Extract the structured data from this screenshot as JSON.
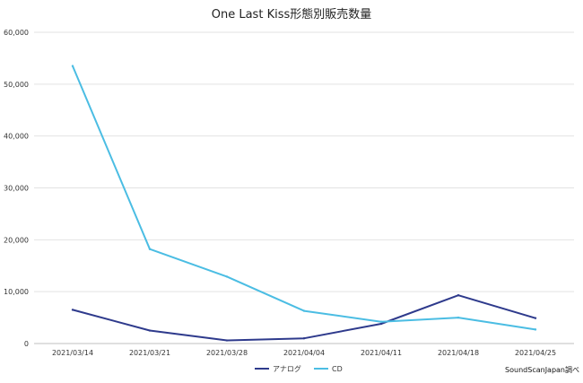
{
  "chart_data": {
    "type": "line",
    "title": "One Last Kiss形態別販売数量",
    "categories": [
      "2021/03/14",
      "2021/03/21",
      "2021/03/28",
      "2021/04/04",
      "2021/04/11",
      "2021/04/18",
      "2021/04/25"
    ],
    "series": [
      {
        "name": "アナログ",
        "color": "#2e3a8c",
        "values": [
          6500,
          2500,
          600,
          1000,
          3800,
          9300,
          4900
        ]
      },
      {
        "name": "CD",
        "color": "#4bbde3",
        "values": [
          53500,
          18200,
          12900,
          6300,
          4200,
          5000,
          2700
        ]
      }
    ],
    "yticks": [
      0,
      10000,
      20000,
      30000,
      40000,
      50000,
      60000
    ],
    "ylim": [
      0,
      60000
    ],
    "grid": true,
    "legend_position": "bottom"
  },
  "source_note": "SoundScanJapan調べ"
}
